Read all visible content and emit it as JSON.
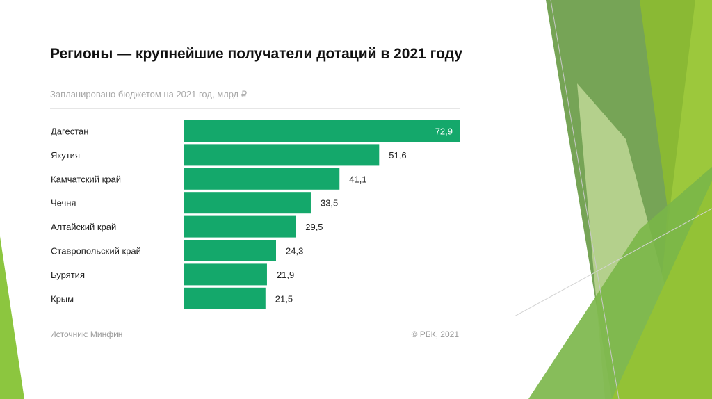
{
  "chart_data": {
    "type": "bar",
    "orientation": "horizontal",
    "title": "Регионы — крупнейшие получатели дотаций в 2021 году",
    "subtitle": "Запланировано бюджетом на 2021 год, млрд ₽",
    "categories": [
      "Дагестан",
      "Якутия",
      "Камчатский край",
      "Чечня",
      "Алтайский край",
      "Ставропольский край",
      "Бурятия",
      "Крым"
    ],
    "values": [
      72.9,
      51.6,
      41.1,
      33.5,
      29.5,
      24.3,
      21.9,
      21.5
    ],
    "value_labels": [
      "72,9",
      "51,6",
      "41,1",
      "33,5",
      "29,5",
      "24,3",
      "21,9",
      "21,5"
    ],
    "xlim": [
      0,
      72.9
    ],
    "grid": false,
    "bar_color": "#14a86b",
    "source": "Источник: Минфин",
    "copyright": "© РБК, 2021"
  }
}
